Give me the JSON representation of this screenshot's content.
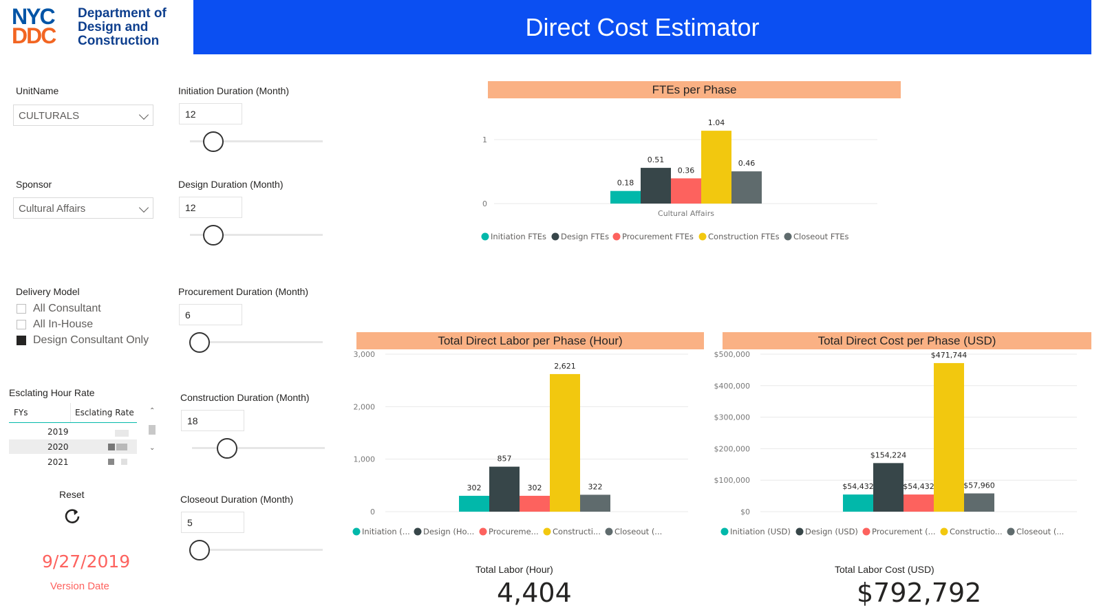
{
  "header": {
    "logo_line1": "NYC",
    "logo_line2": "DDC",
    "org_name": "Department of Design and Construction",
    "title": "Direct Cost Estimator"
  },
  "filters": {
    "unit_name_label": "UnitName",
    "unit_name_value": "CULTURALS",
    "sponsor_label": "Sponsor",
    "sponsor_value": "Cultural Affairs",
    "delivery_model_label": "Delivery Model",
    "delivery_options": [
      {
        "label": "All Consultant",
        "checked": false
      },
      {
        "label": "All In-House",
        "checked": false
      },
      {
        "label": "Design Consultant Only",
        "checked": true
      }
    ]
  },
  "durations": [
    {
      "label": "Initiation Duration (Month)",
      "value": "12"
    },
    {
      "label": "Design Duration (Month)",
      "value": "12"
    },
    {
      "label": "Procurement Duration (Month)",
      "value": "6"
    },
    {
      "label": "Construction Duration (Month)",
      "value": "18"
    },
    {
      "label": "Closeout Duration (Month)",
      "value": "5"
    }
  ],
  "escalating": {
    "title": "Esclating Hour Rate",
    "col_fy": "FYs",
    "col_rate": "Esclating Rate",
    "rows": [
      "2019",
      "2020",
      "2021"
    ]
  },
  "reset_label": "Reset",
  "version": {
    "date": "9/27/2019",
    "label": "Version Date"
  },
  "colors": {
    "initiation": "#01b8aa",
    "design": "#374649",
    "procurement": "#fd625e",
    "construction": "#f2c80f",
    "closeout": "#5f6b6d",
    "header": "#0b4ff2",
    "chart_title_bg": "#fab184"
  },
  "chart_data": [
    {
      "type": "bar",
      "title": "FTEs per Phase",
      "categories": [
        "Cultural Affairs"
      ],
      "series": [
        {
          "name": "Initiation FTEs",
          "values": [
            0.18
          ]
        },
        {
          "name": "Design FTEs",
          "values": [
            0.51
          ]
        },
        {
          "name": "Procurement FTEs",
          "values": [
            0.36
          ]
        },
        {
          "name": "Construction FTEs",
          "values": [
            1.04
          ]
        },
        {
          "name": "Closeout FTEs",
          "values": [
            0.46
          ]
        }
      ],
      "data_labels": [
        "0.18",
        "0.51",
        "0.36",
        "1.04",
        "0.46"
      ],
      "yticks": [
        "0",
        "1"
      ],
      "ylim": [
        0,
        1.1
      ],
      "legend": "bottom"
    },
    {
      "type": "bar",
      "title": "Total Direct Labor per Phase (Hour)",
      "series": [
        {
          "name": "Initiation (...",
          "values": [
            302
          ]
        },
        {
          "name": "Design (Ho...",
          "values": [
            857
          ]
        },
        {
          "name": "Procureme...",
          "values": [
            302
          ]
        },
        {
          "name": "Constructi...",
          "values": [
            2621
          ]
        },
        {
          "name": "Closeout (...",
          "values": [
            322
          ]
        }
      ],
      "data_labels": [
        "302",
        "857",
        "302",
        "2,621",
        "322"
      ],
      "yticks": [
        "0",
        "1,000",
        "2,000",
        "3,000"
      ],
      "ylim": [
        0,
        3000
      ],
      "legend": "bottom"
    },
    {
      "type": "bar",
      "title": "Total Direct Cost per Phase (USD)",
      "series": [
        {
          "name": "Initiation (USD)",
          "values": [
            54432
          ]
        },
        {
          "name": "Design (USD)",
          "values": [
            154224
          ]
        },
        {
          "name": "Procurement (...",
          "values": [
            54432
          ]
        },
        {
          "name": "Constructio...",
          "values": [
            471744
          ]
        },
        {
          "name": "Closeout (...",
          "values": [
            57960
          ]
        }
      ],
      "data_labels": [
        "$54,432",
        "$154,224",
        "$54,432",
        "$471,744",
        "$57,960"
      ],
      "yticks": [
        "$0",
        "$100,000",
        "$200,000",
        "$300,000",
        "$400,000",
        "$500,000"
      ],
      "ylim": [
        0,
        500000
      ],
      "legend": "bottom"
    }
  ],
  "totals": {
    "labor_label": "Total Labor (Hour)",
    "labor_value": "4,404",
    "cost_label": "Total Labor Cost (USD)",
    "cost_value": "$792,792"
  }
}
